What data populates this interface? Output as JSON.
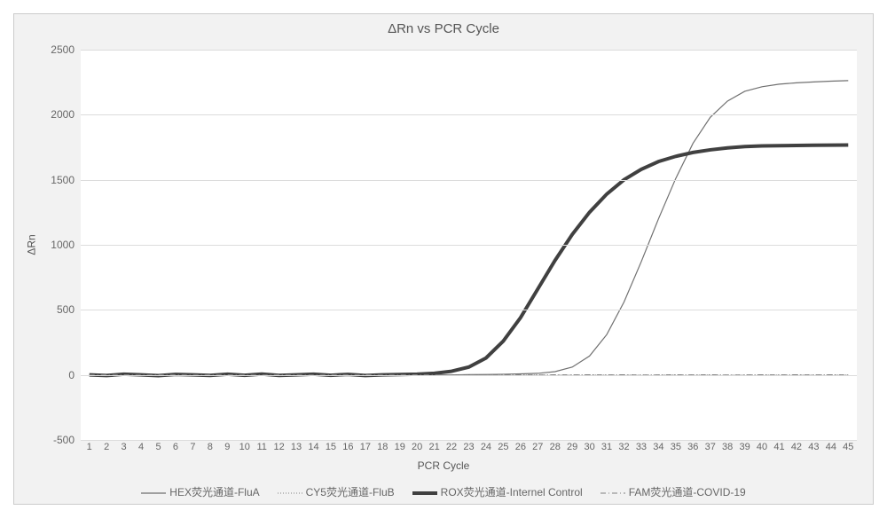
{
  "chart": {
    "type": "line",
    "title": "ΔRn vs PCR Cycle",
    "title_fontsize": 15,
    "xlabel": "PCR Cycle",
    "ylabel": "ΔRn",
    "label_fontsize": 12,
    "background_color": "#f2f2f2",
    "plot_background_color": "#ffffff",
    "grid_color": "#dcdcdc",
    "axis_line_color": "#c0c0c0",
    "text_color": "#666666",
    "xlim": [
      1,
      45
    ],
    "ylim": [
      -500,
      2500
    ],
    "ytick_step": 500,
    "yticks": [
      -500,
      0,
      500,
      1000,
      1500,
      2000,
      2500
    ],
    "xticks": [
      1,
      2,
      3,
      4,
      5,
      6,
      7,
      8,
      9,
      10,
      11,
      12,
      13,
      14,
      15,
      16,
      17,
      18,
      19,
      20,
      21,
      22,
      23,
      24,
      25,
      26,
      27,
      28,
      29,
      30,
      31,
      32,
      33,
      34,
      35,
      36,
      37,
      38,
      39,
      40,
      41,
      42,
      43,
      44,
      45
    ],
    "x_categories": [
      1,
      2,
      3,
      4,
      5,
      6,
      7,
      8,
      9,
      10,
      11,
      12,
      13,
      14,
      15,
      16,
      17,
      18,
      19,
      20,
      21,
      22,
      23,
      24,
      25,
      26,
      27,
      28,
      29,
      30,
      31,
      32,
      33,
      34,
      35,
      36,
      37,
      38,
      39,
      40,
      41,
      42,
      43,
      44,
      45
    ],
    "series": [
      {
        "name": "HEX荧光通道-FluA",
        "color": "#707070",
        "line_width": 1.2,
        "dash": "solid",
        "values": [
          0,
          -5,
          0,
          5,
          -3,
          0,
          3,
          -4,
          0,
          2,
          -3,
          0,
          4,
          -2,
          0,
          3,
          -3,
          0,
          2,
          0,
          0,
          0,
          2,
          3,
          5,
          8,
          12,
          25,
          60,
          145,
          310,
          560,
          870,
          1200,
          1510,
          1780,
          1980,
          2105,
          2180,
          2215,
          2235,
          2245,
          2252,
          2258,
          2262
        ]
      },
      {
        "name": "CY5荧光通道-FluB",
        "color": "#808080",
        "line_width": 1,
        "dash": "1 2",
        "values": [
          0,
          1,
          -1,
          0,
          2,
          -1,
          0,
          1,
          -1,
          0,
          1,
          0,
          -1,
          1,
          0,
          -1,
          1,
          0,
          1,
          -1,
          0,
          1,
          0,
          -1,
          1,
          0,
          1,
          -1,
          0,
          1,
          0,
          1,
          -1,
          0,
          1,
          0,
          1,
          -1,
          0,
          1,
          0,
          1,
          0,
          1,
          0
        ]
      },
      {
        "name": "ROX荧光通道-Internel Control",
        "color": "#404040",
        "line_width": 4,
        "dash": "solid",
        "values": [
          0,
          -5,
          5,
          0,
          -6,
          4,
          0,
          -4,
          5,
          -3,
          6,
          -4,
          0,
          5,
          -3,
          4,
          -5,
          0,
          3,
          5,
          12,
          28,
          60,
          130,
          260,
          440,
          660,
          880,
          1080,
          1250,
          1390,
          1500,
          1580,
          1640,
          1680,
          1710,
          1730,
          1745,
          1755,
          1760,
          1762,
          1764,
          1765,
          1766,
          1767
        ]
      },
      {
        "name": "FAM荧光通道-COVID-19",
        "color": "#808080",
        "line_width": 1,
        "dash": "6 3 1 3",
        "values": [
          0,
          0,
          1,
          -1,
          0,
          1,
          -1,
          0,
          1,
          0,
          -1,
          1,
          0,
          -1,
          1,
          0,
          1,
          -1,
          0,
          1,
          0,
          -1,
          1,
          0,
          1,
          0,
          -1,
          1,
          0,
          1,
          0,
          1,
          -1,
          0,
          1,
          0,
          1,
          -1,
          0,
          1,
          0,
          1,
          0,
          1,
          0
        ]
      }
    ]
  }
}
